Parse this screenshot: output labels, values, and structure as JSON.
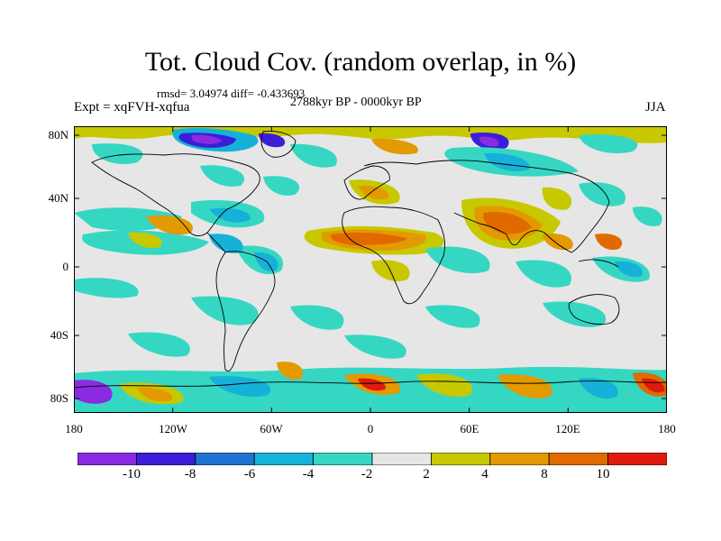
{
  "title": "Tot. Cloud Cov. (random overlap, in %)",
  "stats": "rmsd= 3.04974 diff= -0.433693",
  "experiment": "Expt = xqFVH-xqfua",
  "period": "2788kyr BP - 0000kyr BP",
  "season": "JJA",
  "lat_labels": [
    "80N",
    "40N",
    "0",
    "40S",
    "80S"
  ],
  "lon_labels": [
    "180",
    "120W",
    "60W",
    "0",
    "60E",
    "120E",
    "180"
  ],
  "colorbar": {
    "colors": [
      "#8a2be2",
      "#3a1fd6",
      "#1f74d2",
      "#16b1d8",
      "#35d7c3",
      "#e6e6e6",
      "#c8c800",
      "#e39a00",
      "#e06a00",
      "#e11a10"
    ],
    "labels": [
      "-10",
      "-8",
      "-6",
      "-4",
      "-2",
      "2",
      "4",
      "8",
      "10"
    ]
  },
  "icons": {
    "map": "world-map-icon"
  }
}
